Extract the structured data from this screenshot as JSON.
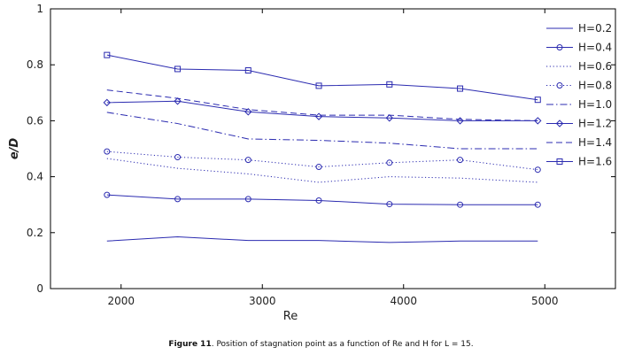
{
  "caption": {
    "label": "Figure 11",
    "text": ". Position of stagnation point as a function of Re and H for L = 15."
  },
  "colors": {
    "series": "#2b2bb0",
    "axis": "#000000"
  },
  "chart_data": {
    "type": "line",
    "xlabel": "Re",
    "ylabel": "e/D",
    "xlim": [
      1500,
      5500
    ],
    "ylim": [
      0,
      1
    ],
    "xticks": [
      2000,
      3000,
      4000,
      5000
    ],
    "yticks": [
      0,
      0.2,
      0.4,
      0.6,
      0.8,
      1
    ],
    "ytick_labels": [
      "0",
      "0.2",
      "0.4",
      "0.6",
      "0.8",
      "1"
    ],
    "legend_position": "right",
    "x": [
      1900,
      2400,
      2900,
      3400,
      3900,
      4400,
      4950
    ],
    "series": [
      {
        "name": "H=0.2",
        "style": "solid",
        "marker": "none",
        "values": [
          0.17,
          0.185,
          0.172,
          0.172,
          0.165,
          0.17,
          0.17
        ]
      },
      {
        "name": "H=0.4",
        "style": "solid",
        "marker": "circle",
        "values": [
          0.335,
          0.32,
          0.32,
          0.315,
          0.302,
          0.3,
          0.3
        ]
      },
      {
        "name": "H=0.6",
        "style": "dotted",
        "marker": "none",
        "values": [
          0.465,
          0.43,
          0.41,
          0.38,
          0.4,
          0.395,
          0.38
        ]
      },
      {
        "name": "H=0.8",
        "style": "dotted",
        "marker": "circle",
        "values": [
          0.49,
          0.47,
          0.46,
          0.435,
          0.45,
          0.46,
          0.425
        ]
      },
      {
        "name": "H=1.0",
        "style": "dashdot",
        "marker": "none",
        "values": [
          0.63,
          0.59,
          0.535,
          0.53,
          0.52,
          0.5,
          0.5
        ]
      },
      {
        "name": "H=1.2",
        "style": "solid",
        "marker": "diamond",
        "values": [
          0.665,
          0.67,
          0.632,
          0.615,
          0.61,
          0.6,
          0.6
        ]
      },
      {
        "name": "H=1.4",
        "style": "dashed",
        "marker": "none",
        "values": [
          0.71,
          0.68,
          0.64,
          0.62,
          0.62,
          0.605,
          0.6
        ]
      },
      {
        "name": "H=1.6",
        "style": "solid",
        "marker": "square",
        "values": [
          0.835,
          0.785,
          0.78,
          0.725,
          0.73,
          0.715,
          0.675
        ]
      }
    ]
  }
}
